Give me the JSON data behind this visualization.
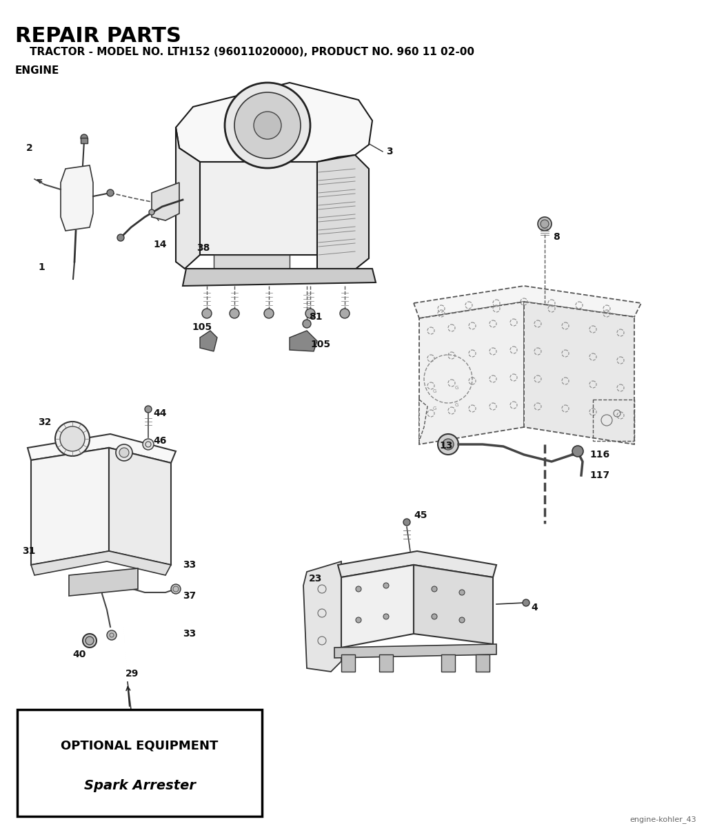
{
  "title": "REPAIR PARTS",
  "subtitle": "    TRACTOR - MODEL NO. LTH152 (96011020000), PRODUCT NO. 960 11 02-00",
  "section": "ENGINE",
  "footer": "engine-kohler_43",
  "optional_title": "OPTIONAL EQUIPMENT",
  "optional_sub": "Spark Arrester",
  "bg_color": "#ffffff",
  "line_color": "#1a1a1a",
  "figsize": [
    10.24,
    12.15
  ],
  "dpi": 100
}
